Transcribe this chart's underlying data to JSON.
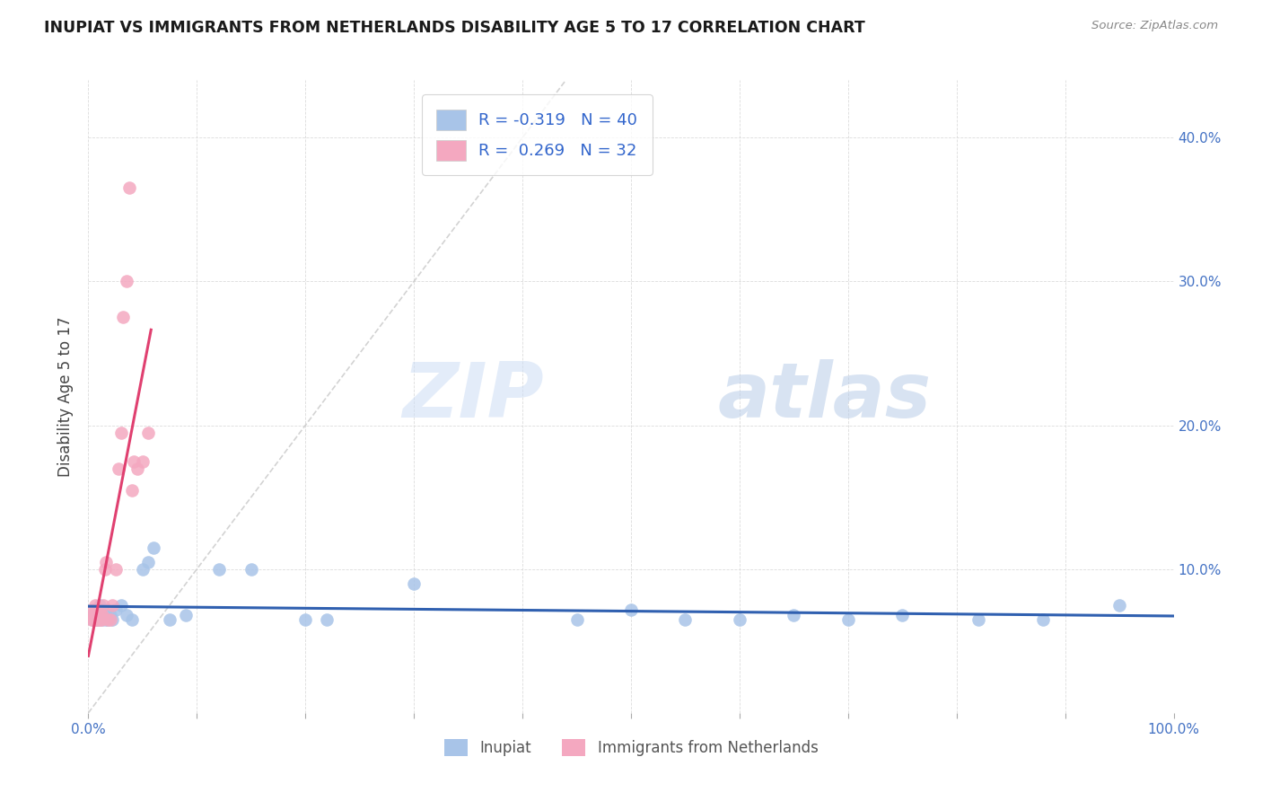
{
  "title": "INUPIAT VS IMMIGRANTS FROM NETHERLANDS DISABILITY AGE 5 TO 17 CORRELATION CHART",
  "source": "Source: ZipAtlas.com",
  "ylabel": "Disability Age 5 to 17",
  "legend_labels": [
    "Inupiat",
    "Immigrants from Netherlands"
  ],
  "r_inupiat": -0.319,
  "n_inupiat": 40,
  "r_netherlands": 0.269,
  "n_netherlands": 32,
  "color_inupiat": "#a8c4e8",
  "color_netherlands": "#f4a8c0",
  "line_color_inupiat": "#3060b0",
  "line_color_netherlands": "#e04070",
  "watermark_zip": "ZIP",
  "watermark_atlas": "atlas",
  "xlim": [
    0.0,
    1.0
  ],
  "ylim": [
    0.0,
    0.44
  ],
  "inupiat_x": [
    0.003,
    0.004,
    0.005,
    0.006,
    0.007,
    0.008,
    0.009,
    0.01,
    0.011,
    0.012,
    0.013,
    0.015,
    0.016,
    0.018,
    0.02,
    0.022,
    0.025,
    0.03,
    0.035,
    0.04,
    0.05,
    0.055,
    0.06,
    0.075,
    0.09,
    0.12,
    0.15,
    0.2,
    0.22,
    0.3,
    0.45,
    0.5,
    0.55,
    0.6,
    0.65,
    0.7,
    0.75,
    0.82,
    0.88,
    0.95
  ],
  "inupiat_y": [
    0.068,
    0.065,
    0.068,
    0.065,
    0.068,
    0.072,
    0.065,
    0.075,
    0.068,
    0.065,
    0.072,
    0.065,
    0.068,
    0.065,
    0.068,
    0.065,
    0.072,
    0.075,
    0.068,
    0.065,
    0.1,
    0.105,
    0.115,
    0.065,
    0.068,
    0.1,
    0.1,
    0.065,
    0.065,
    0.09,
    0.065,
    0.072,
    0.065,
    0.065,
    0.068,
    0.065,
    0.068,
    0.065,
    0.065,
    0.075
  ],
  "netherlands_x": [
    0.003,
    0.004,
    0.005,
    0.005,
    0.006,
    0.006,
    0.007,
    0.007,
    0.008,
    0.008,
    0.009,
    0.01,
    0.011,
    0.012,
    0.013,
    0.014,
    0.015,
    0.016,
    0.018,
    0.02,
    0.022,
    0.025,
    0.028,
    0.03,
    0.032,
    0.035,
    0.038,
    0.04,
    0.042,
    0.045,
    0.05,
    0.055
  ],
  "netherlands_y": [
    0.065,
    0.068,
    0.065,
    0.072,
    0.068,
    0.075,
    0.065,
    0.068,
    0.065,
    0.072,
    0.068,
    0.065,
    0.068,
    0.065,
    0.068,
    0.075,
    0.1,
    0.105,
    0.065,
    0.065,
    0.075,
    0.1,
    0.17,
    0.195,
    0.275,
    0.3,
    0.365,
    0.155,
    0.175,
    0.17,
    0.175,
    0.195
  ]
}
